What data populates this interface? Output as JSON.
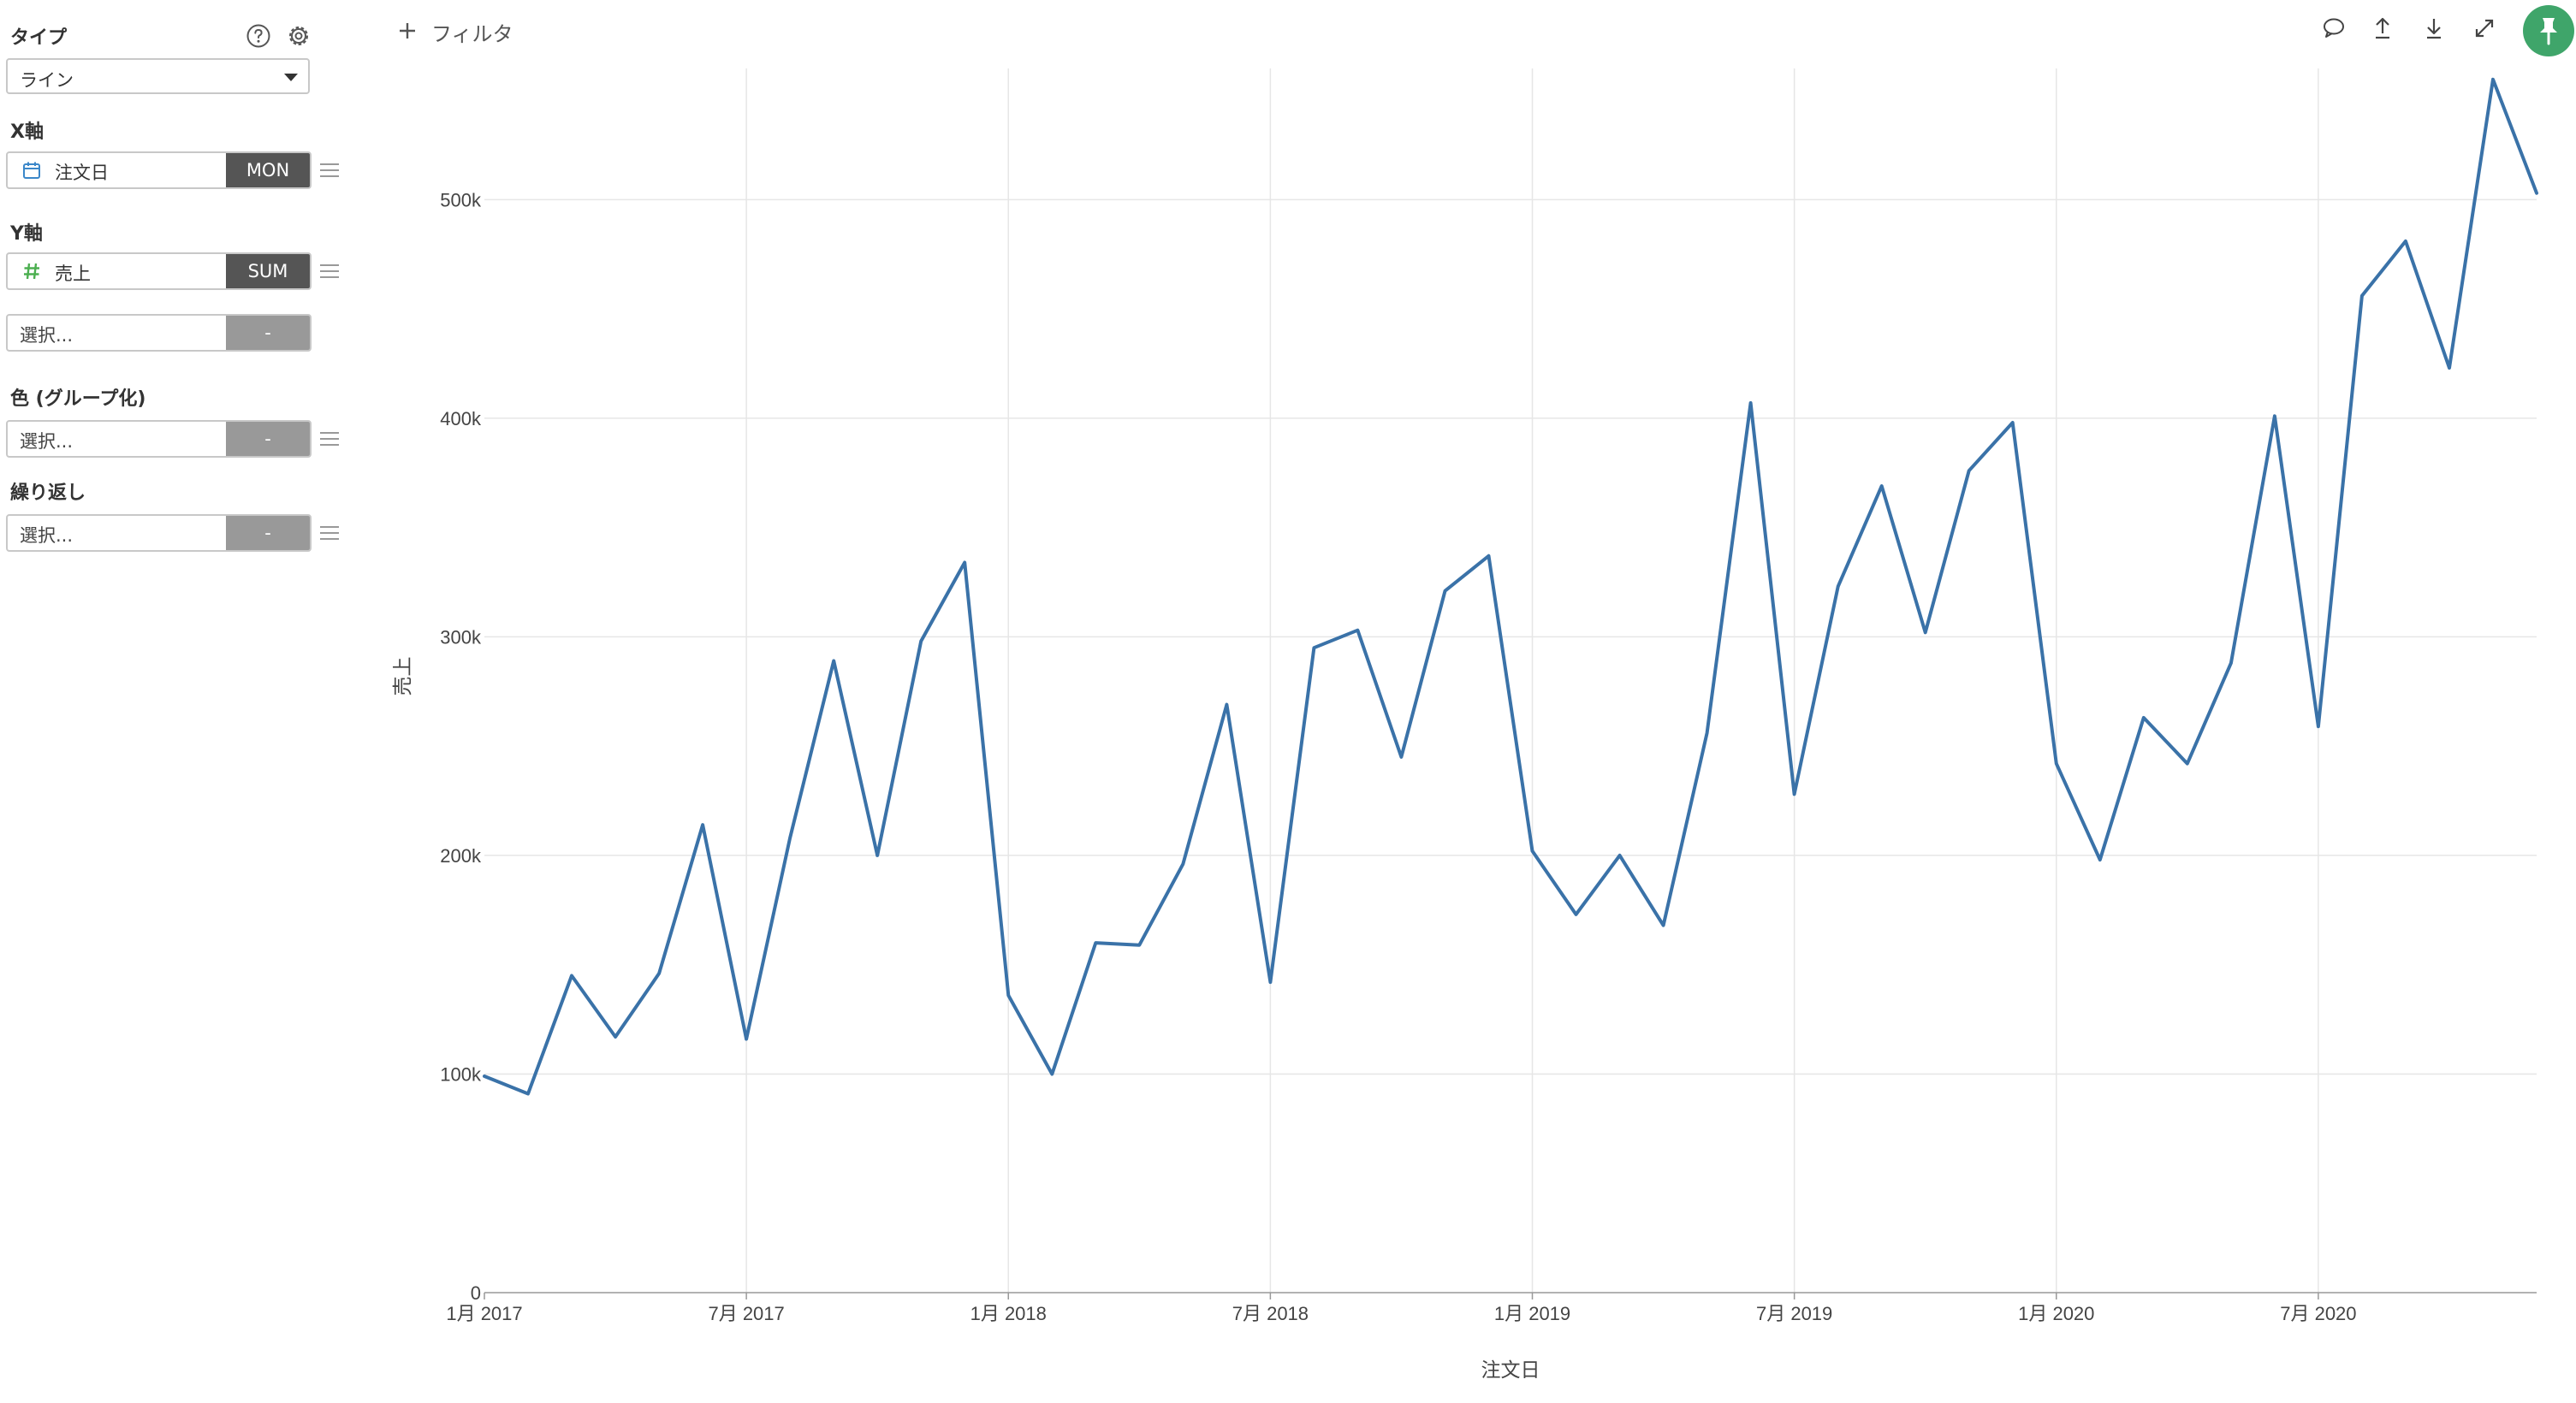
{
  "sidebar": {
    "type_label": "タイプ",
    "type_value": "ライン",
    "x_axis_label": "X軸",
    "x_field": {
      "name": "注文日",
      "icon": "calendar-icon",
      "agg": "MON"
    },
    "y_axis_label": "Y軸",
    "y_field": {
      "name": "売上",
      "icon": "hash-icon",
      "agg": "SUM"
    },
    "y_extra": {
      "placeholder": "選択...",
      "agg": "-"
    },
    "color_label": "色 (グループ化)",
    "color_field": {
      "placeholder": "選択...",
      "agg": "-"
    },
    "repeat_label": "繰り返し",
    "repeat_field": {
      "placeholder": "選択...",
      "agg": "-"
    }
  },
  "toolbar": {
    "filter_label": "フィルタ",
    "icons": [
      "comment-icon",
      "upload-icon",
      "download-icon",
      "expand-icon",
      "pin-icon"
    ]
  },
  "colors": {
    "line": "#3a72a8",
    "pin": "#3fa56a",
    "calendar_icon": "#3b87c9",
    "hash_icon": "#4caf50",
    "agg_dark": "#555555",
    "agg_light": "#999999",
    "grid": "#e6e6e6"
  },
  "chart_data": {
    "type": "line",
    "xlabel": "注文日",
    "ylabel": "売上",
    "ylim": [
      0,
      560000
    ],
    "grid": true,
    "y_ticks": [
      {
        "value": 0,
        "label": "0"
      },
      {
        "value": 100000,
        "label": "100k"
      },
      {
        "value": 200000,
        "label": "200k"
      },
      {
        "value": 300000,
        "label": "300k"
      },
      {
        "value": 400000,
        "label": "400k"
      },
      {
        "value": 500000,
        "label": "500k"
      }
    ],
    "x_ticks": [
      {
        "value": "2017-01",
        "label": "1月 2017"
      },
      {
        "value": "2017-07",
        "label": "7月 2017"
      },
      {
        "value": "2018-01",
        "label": "1月 2018"
      },
      {
        "value": "2018-07",
        "label": "7月 2018"
      },
      {
        "value": "2019-01",
        "label": "1月 2019"
      },
      {
        "value": "2019-07",
        "label": "7月 2019"
      },
      {
        "value": "2020-01",
        "label": "1月 2020"
      },
      {
        "value": "2020-07",
        "label": "7月 2020"
      }
    ],
    "x": [
      "2017-01",
      "2017-02",
      "2017-03",
      "2017-04",
      "2017-05",
      "2017-06",
      "2017-07",
      "2017-08",
      "2017-09",
      "2017-10",
      "2017-11",
      "2017-12",
      "2018-01",
      "2018-02",
      "2018-03",
      "2018-04",
      "2018-05",
      "2018-06",
      "2018-07",
      "2018-08",
      "2018-09",
      "2018-10",
      "2018-11",
      "2018-12",
      "2019-01",
      "2019-02",
      "2019-03",
      "2019-04",
      "2019-05",
      "2019-06",
      "2019-07",
      "2019-08",
      "2019-09",
      "2019-10",
      "2019-11",
      "2019-12",
      "2020-01",
      "2020-02",
      "2020-03",
      "2020-04",
      "2020-05",
      "2020-06",
      "2020-07",
      "2020-08",
      "2020-09",
      "2020-10",
      "2020-11",
      "2020-12"
    ],
    "series": [
      {
        "values": [
          99000,
          91000,
          145000,
          117000,
          146000,
          214000,
          116000,
          208000,
          289000,
          200000,
          298000,
          334000,
          136000,
          100000,
          160000,
          159000,
          196000,
          269000,
          142000,
          295000,
          303000,
          245000,
          321000,
          337000,
          202000,
          173000,
          200000,
          168000,
          256000,
          407000,
          228000,
          323000,
          369000,
          302000,
          376000,
          398000,
          242000,
          198000,
          263000,
          242000,
          288000,
          401000,
          259000,
          456000,
          481000,
          423000,
          555000,
          503000
        ]
      }
    ]
  }
}
